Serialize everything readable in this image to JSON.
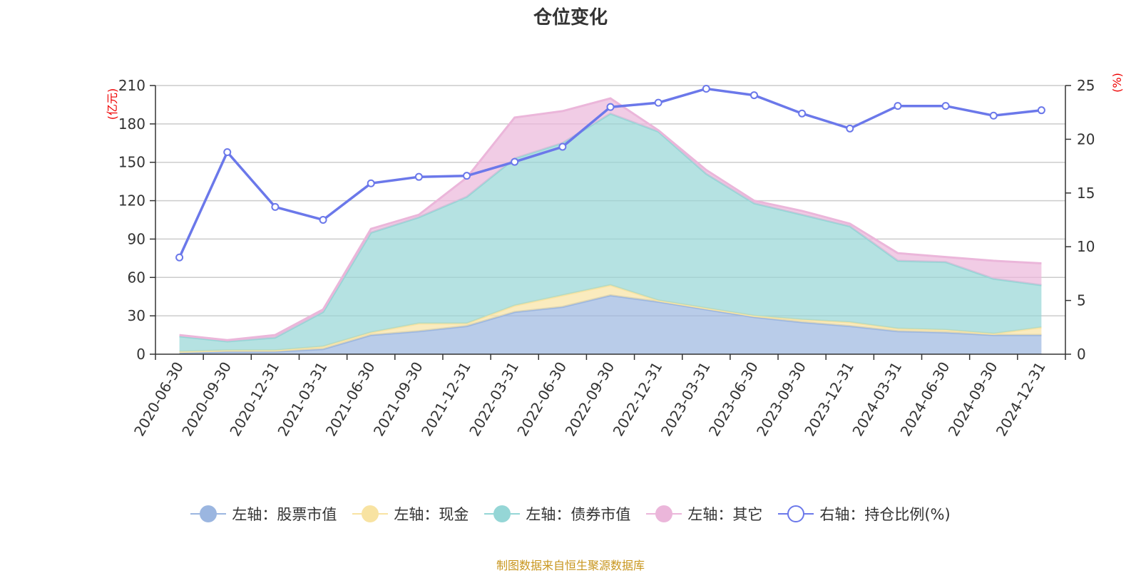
{
  "chart_data": {
    "type": "area",
    "title": "仓位变化",
    "ylabel_left": "(亿元)",
    "ylabel_right": "(%)",
    "ylim_left": [
      0,
      210
    ],
    "yticks_left": [
      0,
      30,
      60,
      90,
      120,
      150,
      180,
      210
    ],
    "ylim_right": [
      0,
      25
    ],
    "yticks_right": [
      0,
      5,
      10,
      15,
      20,
      25
    ],
    "categories": [
      "2020-06-30",
      "2020-09-30",
      "2020-12-31",
      "2021-03-31",
      "2021-06-30",
      "2021-09-30",
      "2021-12-31",
      "2022-03-31",
      "2022-06-30",
      "2022-09-30",
      "2022-12-31",
      "2023-03-31",
      "2023-06-30",
      "2023-09-30",
      "2023-12-31",
      "2024-03-31",
      "2024-06-30",
      "2024-09-30",
      "2024-12-31"
    ],
    "series": [
      {
        "name": "左轴：股票市值",
        "axis": "left",
        "type": "area",
        "color": "#9bb6e0",
        "values": [
          1,
          2,
          2,
          4,
          15,
          18,
          22,
          33,
          37,
          46,
          41,
          35,
          29,
          25,
          22,
          18,
          17,
          15,
          15
        ]
      },
      {
        "name": "左轴：现金",
        "axis": "left",
        "type": "area",
        "color": "#f8e3a2",
        "values": [
          1,
          1,
          1,
          2,
          2,
          6,
          2,
          5,
          9,
          8,
          1,
          1,
          1,
          2,
          3,
          2,
          2,
          1,
          6
        ]
      },
      {
        "name": "左轴：债券市值",
        "axis": "left",
        "type": "area",
        "color": "#95d6d6",
        "values": [
          12,
          7,
          10,
          27,
          78,
          83,
          99,
          115,
          119,
          134,
          132,
          105,
          88,
          82,
          75,
          53,
          53,
          43,
          33
        ]
      },
      {
        "name": "左轴：其它",
        "axis": "left",
        "type": "area",
        "color": "#ebb6da",
        "values": [
          1,
          1,
          2,
          2,
          3,
          2,
          15,
          32,
          25,
          12,
          1,
          3,
          2,
          3,
          2,
          6,
          4,
          14,
          17
        ]
      },
      {
        "name": "右轴：持仓比例(%)",
        "axis": "right",
        "type": "line",
        "color": "#6b78ea",
        "values": [
          9.0,
          18.8,
          13.7,
          12.5,
          15.9,
          16.5,
          16.6,
          17.9,
          19.3,
          23.0,
          23.4,
          24.7,
          24.1,
          22.4,
          21.0,
          23.1,
          23.1,
          22.2,
          22.7
        ]
      }
    ],
    "grid": true,
    "legend_position": "bottom"
  },
  "source_note": "制图数据来自恒生聚源数据库"
}
